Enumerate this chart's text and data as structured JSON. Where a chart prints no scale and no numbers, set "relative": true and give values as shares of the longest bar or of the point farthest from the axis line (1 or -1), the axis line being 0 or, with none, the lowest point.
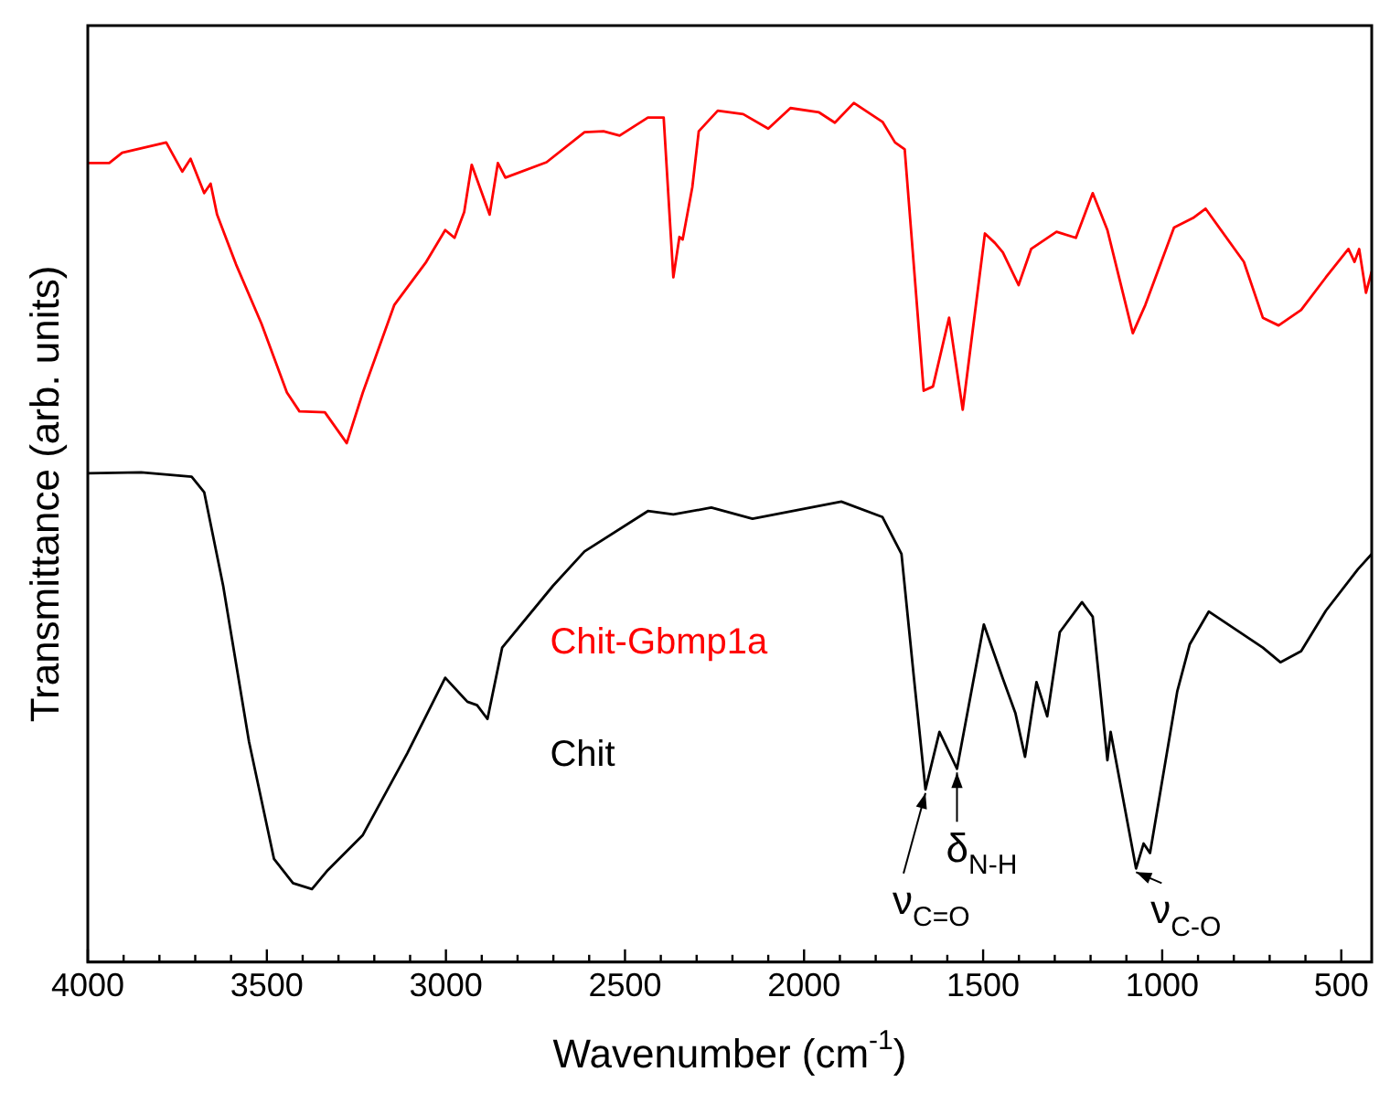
{
  "chart_data": {
    "type": "line",
    "xlabel": "Wavenumber (cm$^{-1}$)",
    "ylabel": "Transmittance (arb. units)",
    "relative": true,
    "xlim": [
      4000,
      415
    ],
    "xticks": [
      4000,
      {
        "value": 3900,
        "label": null
      },
      {
        "value": 3800,
        "label": null
      },
      {
        "value": 3700,
        "label": null
      },
      {
        "value": 3600,
        "label": null
      },
      3500,
      {
        "value": 3400,
        "label": null
      },
      {
        "value": 3300,
        "label": null
      },
      {
        "value": 3200,
        "label": null
      },
      {
        "value": 3100,
        "label": null
      },
      3000,
      {
        "value": 2900,
        "label": null
      },
      {
        "value": 2800,
        "label": null
      },
      {
        "value": 2700,
        "label": null
      },
      {
        "value": 2600,
        "label": null
      },
      2500,
      {
        "value": 2400,
        "label": null
      },
      {
        "value": 2300,
        "label": null
      },
      {
        "value": 2200,
        "label": null
      },
      {
        "value": 2100,
        "label": null
      },
      2000,
      {
        "value": 1900,
        "label": null
      },
      {
        "value": 1800,
        "label": null
      },
      {
        "value": 1700,
        "label": null
      },
      {
        "value": 1600,
        "label": null
      },
      1500,
      {
        "value": 1400,
        "label": null
      },
      {
        "value": 1300,
        "label": null
      },
      {
        "value": 1200,
        "label": null
      },
      {
        "value": 1100,
        "label": null
      },
      1000,
      {
        "value": 900,
        "label": null
      },
      {
        "value": 800,
        "label": null
      },
      {
        "value": 700,
        "label": null
      },
      {
        "value": 600,
        "label": null
      },
      500
    ],
    "grid": false,
    "legend": false,
    "marker": "none",
    "line_style": "solid",
    "series": [
      {
        "name": "Chit-Gbmp1a",
        "color": "#ff0000",
        "x": [
          4000,
          3940,
          3904,
          3781,
          3736,
          3713,
          3675,
          3657,
          3639,
          3586,
          3515,
          3444,
          3409,
          3338,
          3277,
          3232,
          3144,
          3055,
          3002,
          2976,
          2949,
          2928,
          2878,
          2855,
          2834,
          2719,
          2613,
          2560,
          2515,
          2436,
          2392,
          2365,
          2348,
          2339,
          2312,
          2294,
          2241,
          2170,
          2100,
          2038,
          1958,
          1914,
          1861,
          1781,
          1746,
          1719,
          1666,
          1640,
          1595,
          1557,
          1495,
          1467,
          1445,
          1401,
          1366,
          1295,
          1241,
          1194,
          1153,
          1082,
          1047,
          967,
          914,
          879,
          772,
          719,
          675,
          612,
          543,
          480,
          463,
          450,
          431,
          415
        ],
        "values": [
          0.93,
          0.93,
          0.942,
          0.954,
          0.92,
          0.935,
          0.895,
          0.906,
          0.87,
          0.812,
          0.743,
          0.663,
          0.641,
          0.64,
          0.604,
          0.663,
          0.765,
          0.815,
          0.852,
          0.843,
          0.873,
          0.928,
          0.87,
          0.93,
          0.913,
          0.931,
          0.966,
          0.967,
          0.962,
          0.983,
          0.983,
          0.797,
          0.844,
          0.841,
          0.902,
          0.967,
          0.991,
          0.987,
          0.97,
          0.994,
          0.989,
          0.977,
          1,
          0.978,
          0.954,
          0.946,
          0.665,
          0.67,
          0.75,
          0.643,
          0.848,
          0.837,
          0.826,
          0.788,
          0.83,
          0.85,
          0.843,
          0.895,
          0.852,
          0.732,
          0.765,
          0.855,
          0.866,
          0.877,
          0.815,
          0.75,
          0.741,
          0.759,
          0.797,
          0.83,
          0.815,
          0.83,
          0.779,
          0.804
        ]
      },
      {
        "name": "Chit",
        "color": "#000000",
        "x": [
          4000,
          3851,
          3710,
          3675,
          3622,
          3550,
          3480,
          3427,
          3374,
          3330,
          3232,
          3108,
          3002,
          2940,
          2913,
          2884,
          2843,
          2701,
          2613,
          2436,
          2365,
          2259,
          2144,
          1896,
          1781,
          1728,
          1693,
          1661,
          1622,
          1573,
          1498,
          1445,
          1410,
          1383,
          1351,
          1321,
          1286,
          1224,
          1194,
          1153,
          1144,
          1073,
          1052,
          1034,
          958,
          923,
          870,
          719,
          670,
          612,
          543,
          454,
          415
        ],
        "values": [
          0.569,
          0.57,
          0.565,
          0.547,
          0.438,
          0.257,
          0.12,
          0.092,
          0.085,
          0.107,
          0.148,
          0.243,
          0.331,
          0.303,
          0.299,
          0.283,
          0.366,
          0.438,
          0.478,
          0.525,
          0.521,
          0.529,
          0.516,
          0.536,
          0.518,
          0.475,
          0.33,
          0.201,
          0.268,
          0.225,
          0.393,
          0.33,
          0.29,
          0.239,
          0.326,
          0.286,
          0.384,
          0.419,
          0.402,
          0.235,
          0.268,
          0.109,
          0.138,
          0.127,
          0.315,
          0.37,
          0.408,
          0.366,
          0.349,
          0.362,
          0.409,
          0.457,
          0.475
        ]
      }
    ],
    "annotations": [
      {
        "text": "ν$_{C=O}$",
        "x": 1661,
        "y": 0.201
      },
      {
        "text": "δ$_{N-H}$",
        "x": 1573,
        "y": 0.225
      },
      {
        "text": "ν$_{C-O}$",
        "x": 1073,
        "y": 0.109
      }
    ]
  }
}
